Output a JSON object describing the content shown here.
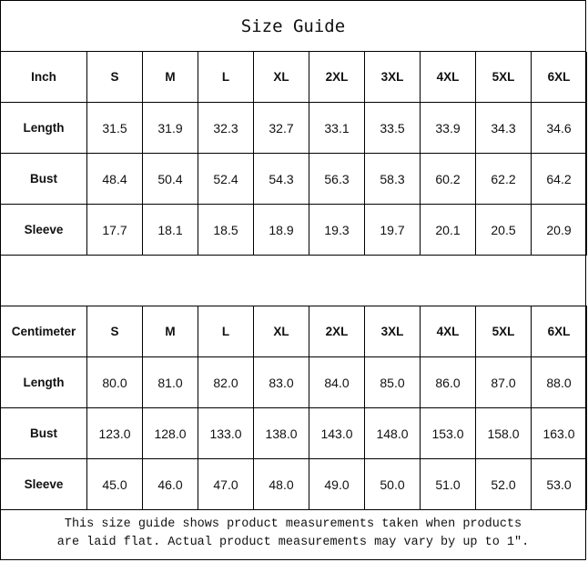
{
  "title": "Size Guide",
  "sizes": [
    "S",
    "M",
    "L",
    "XL",
    "2XL",
    "3XL",
    "4XL",
    "5XL",
    "6XL"
  ],
  "inch": {
    "label": "Inch",
    "rows": [
      {
        "label": "Length",
        "values": [
          "31.5",
          "31.9",
          "32.3",
          "32.7",
          "33.1",
          "33.5",
          "33.9",
          "34.3",
          "34.6"
        ]
      },
      {
        "label": "Bust",
        "values": [
          "48.4",
          "50.4",
          "52.4",
          "54.3",
          "56.3",
          "58.3",
          "60.2",
          "62.2",
          "64.2"
        ]
      },
      {
        "label": "Sleeve",
        "values": [
          "17.7",
          "18.1",
          "18.5",
          "18.9",
          "19.3",
          "19.7",
          "20.1",
          "20.5",
          "20.9"
        ]
      }
    ]
  },
  "cm": {
    "label": "Centimeter",
    "rows": [
      {
        "label": "Length",
        "values": [
          "80.0",
          "81.0",
          "82.0",
          "83.0",
          "84.0",
          "85.0",
          "86.0",
          "87.0",
          "88.0"
        ]
      },
      {
        "label": "Bust",
        "values": [
          "123.0",
          "128.0",
          "133.0",
          "138.0",
          "143.0",
          "148.0",
          "153.0",
          "158.0",
          "163.0"
        ]
      },
      {
        "label": "Sleeve",
        "values": [
          "45.0",
          "46.0",
          "47.0",
          "48.0",
          "49.0",
          "50.0",
          "51.0",
          "52.0",
          "53.0"
        ]
      }
    ]
  },
  "footer": {
    "line1": "This size guide shows product measurements taken when products",
    "line2": "are laid flat. Actual product measurements may vary by up to 1″."
  }
}
